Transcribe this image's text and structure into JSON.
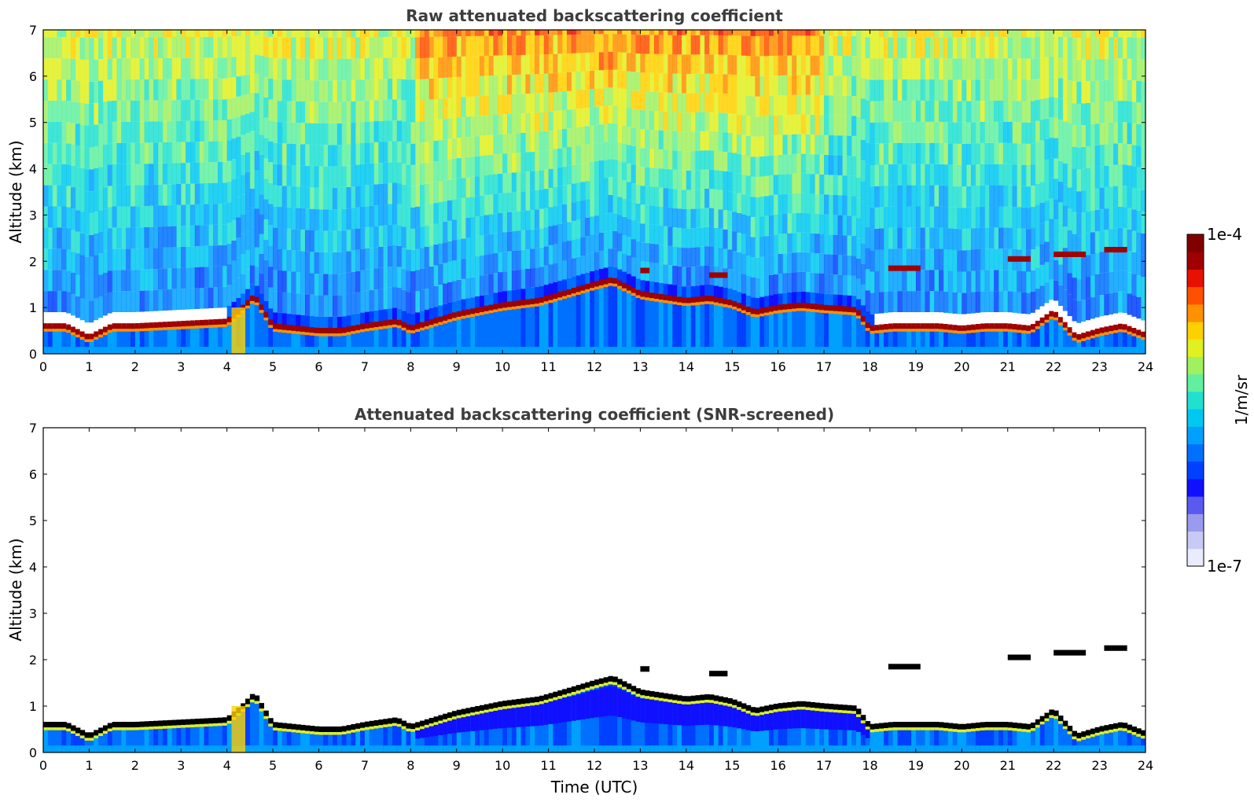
{
  "chart_data": [
    {
      "type": "heatmap",
      "title": "Raw attenuated backscattering coefficient",
      "xlabel": "",
      "ylabel": "Altitude (km)",
      "xlim": [
        0,
        24
      ],
      "ylim": [
        0,
        7
      ],
      "xticks": [
        0,
        1,
        2,
        3,
        4,
        5,
        6,
        7,
        8,
        9,
        10,
        11,
        12,
        13,
        14,
        15,
        16,
        17,
        18,
        19,
        20,
        21,
        22,
        23,
        24
      ],
      "yticks": [
        0,
        1,
        2,
        3,
        4,
        5,
        6,
        7
      ],
      "xtick_labels": [
        "0",
        "1",
        "2",
        "3",
        "4",
        "5",
        "6",
        "7",
        "8",
        "9",
        "10",
        "11",
        "12",
        "13",
        "14",
        "15",
        "16",
        "17",
        "18",
        "19",
        "20",
        "21",
        "22",
        "23",
        "24"
      ],
      "ytick_labels": [
        "0",
        "1",
        "2",
        "3",
        "4",
        "5",
        "6",
        "7"
      ],
      "boundary_layer_top_km": {
        "x": [
          0,
          0.5,
          1,
          1.5,
          2,
          3,
          4,
          4.3,
          4.6,
          5,
          5.5,
          6,
          6.5,
          7,
          7.7,
          8,
          8.5,
          9,
          10,
          10.8,
          11.5,
          12,
          12.4,
          13,
          14,
          14.5,
          15,
          15.5,
          16,
          16.5,
          17,
          17.7,
          18,
          18.5,
          19,
          19.5,
          20,
          20.5,
          21,
          21.5,
          22,
          22.5,
          23,
          23.5,
          24
        ],
        "y": [
          0.6,
          0.6,
          0.35,
          0.6,
          0.6,
          0.65,
          0.7,
          0.95,
          1.25,
          0.6,
          0.55,
          0.5,
          0.5,
          0.6,
          0.7,
          0.55,
          0.7,
          0.85,
          1.05,
          1.15,
          1.35,
          1.5,
          1.6,
          1.3,
          1.15,
          1.2,
          1.1,
          0.9,
          1.0,
          1.05,
          1.0,
          0.95,
          0.55,
          0.6,
          0.6,
          0.6,
          0.55,
          0.6,
          0.6,
          0.55,
          0.9,
          0.35,
          0.5,
          0.6,
          0.4
        ]
      },
      "elevated_cloud_layers_km": [
        {
          "x": [
            18.4,
            19.1
          ],
          "y": 1.85
        },
        {
          "x": [
            21.0,
            21.5
          ],
          "y": 2.05
        },
        {
          "x": [
            22.0,
            22.7
          ],
          "y": 2.15
        },
        {
          "x": [
            23.1,
            23.6
          ],
          "y": 2.25
        },
        {
          "x": [
            13.0,
            13.2
          ],
          "y": 1.8
        },
        {
          "x": [
            14.5,
            14.9
          ],
          "y": 1.7
        }
      ]
    },
    {
      "type": "heatmap",
      "title": "Attenuated backscattering coefficient (SNR-screened)",
      "xlabel": "Time (UTC)",
      "ylabel": "Altitude (km)",
      "xlim": [
        0,
        24
      ],
      "ylim": [
        0,
        7
      ],
      "xticks": [
        0,
        1,
        2,
        3,
        4,
        5,
        6,
        7,
        8,
        9,
        10,
        11,
        12,
        13,
        14,
        15,
        16,
        17,
        18,
        19,
        20,
        21,
        22,
        23,
        24
      ],
      "yticks": [
        0,
        1,
        2,
        3,
        4,
        5,
        6,
        7
      ],
      "xtick_labels": [
        "0",
        "1",
        "2",
        "3",
        "4",
        "5",
        "6",
        "7",
        "8",
        "9",
        "10",
        "11",
        "12",
        "13",
        "14",
        "15",
        "16",
        "17",
        "18",
        "19",
        "20",
        "21",
        "22",
        "23",
        "24"
      ],
      "ytick_labels": [
        "0",
        "1",
        "2",
        "3",
        "4",
        "5",
        "6",
        "7"
      ]
    }
  ],
  "colorbar": {
    "max_label": "1e-4",
    "min_label": "1e-7",
    "unit_label": "1/m/sr",
    "scale": "log",
    "colormap": [
      "#ebebff",
      "#c9c9f5",
      "#9a9aee",
      "#5a5af0",
      "#1010ff",
      "#0040ff",
      "#0070ff",
      "#00a0ff",
      "#00c8f0",
      "#20e0d0",
      "#60f0a0",
      "#a0f060",
      "#e0f020",
      "#ffd000",
      "#ff9000",
      "#ff5000",
      "#e81000",
      "#a00000",
      "#800000"
    ]
  }
}
